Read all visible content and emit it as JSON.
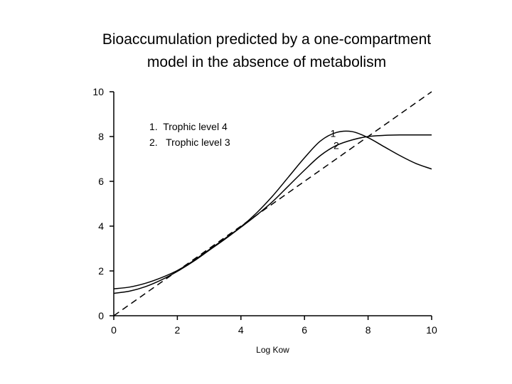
{
  "title": {
    "line1": "Bioaccumulation predicted by a one-compartment",
    "line2": "model in the absence of metabolism"
  },
  "legend": {
    "item1": "1.  Trophic level 4",
    "item2": "2.   Trophic level 3"
  },
  "chart_data": {
    "type": "line",
    "title": "Bioaccumulation predicted by a one-compartment model in the absence of metabolism",
    "xlabel": "Log Kow",
    "ylabel": "",
    "xlim": [
      0,
      10
    ],
    "ylim": [
      0,
      10
    ],
    "xticks": [
      0,
      2,
      4,
      6,
      8,
      10
    ],
    "yticks": [
      0,
      2,
      4,
      6,
      8,
      10
    ],
    "grid": false,
    "series": [
      {
        "name": "1",
        "style": "solid",
        "x": [
          0,
          0.5,
          1,
          1.5,
          2,
          2.5,
          3,
          3.5,
          4,
          4.5,
          5,
          5.5,
          6,
          6.5,
          7,
          7.5,
          8,
          8.5,
          9,
          9.5,
          10
        ],
        "y": [
          1.2,
          1.28,
          1.45,
          1.7,
          2.02,
          2.45,
          2.95,
          3.45,
          3.97,
          4.6,
          5.35,
          6.2,
          7.05,
          7.8,
          8.18,
          8.22,
          7.95,
          7.55,
          7.15,
          6.8,
          6.55
        ]
      },
      {
        "name": "2",
        "style": "solid",
        "x": [
          0,
          0.5,
          1,
          1.5,
          2,
          2.5,
          3,
          3.5,
          4,
          4.5,
          5,
          5.5,
          6,
          6.5,
          7,
          7.5,
          8,
          8.5,
          9,
          9.5,
          10
        ],
        "y": [
          1.0,
          1.1,
          1.3,
          1.6,
          1.98,
          2.42,
          2.92,
          3.42,
          3.95,
          4.5,
          5.1,
          5.8,
          6.5,
          7.15,
          7.6,
          7.85,
          8.0,
          8.05,
          8.07,
          8.07,
          8.07
        ]
      },
      {
        "name": "",
        "style": "dashed",
        "x": [
          0,
          10
        ],
        "y": [
          0,
          10
        ]
      }
    ],
    "curve_labels": [
      {
        "text": "1",
        "x": 6.9,
        "y": 8.15
      },
      {
        "text": "2",
        "x": 7.0,
        "y": 7.6
      }
    ],
    "legend_position": "top-left"
  },
  "colors": {
    "line": "#000000",
    "background": "#ffffff"
  }
}
